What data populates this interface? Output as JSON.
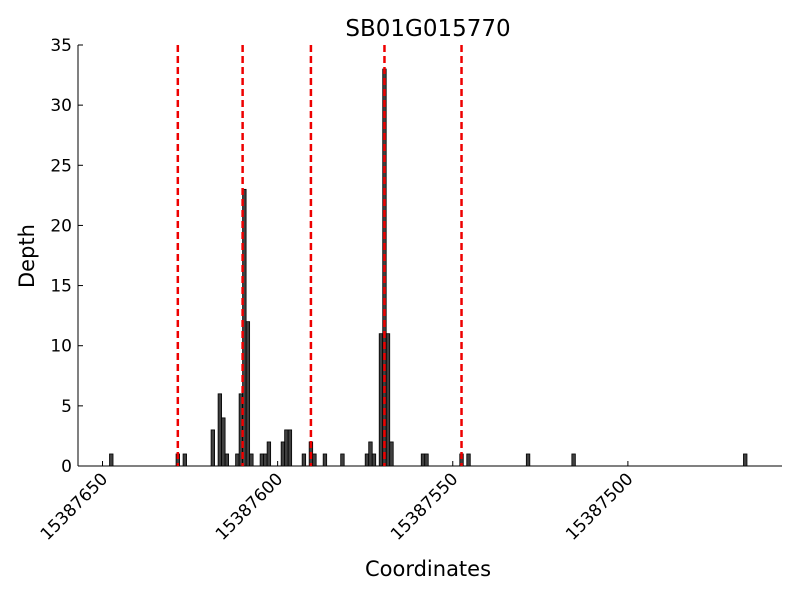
{
  "chart_data": {
    "type": "bar",
    "title": "SB01G015770",
    "x_label": "Coordinates",
    "y_label": "Depth",
    "x": [
      15387648,
      15387629,
      15387627,
      15387619,
      15387617,
      15387616,
      15387615,
      15387612,
      15387611,
      15387610,
      15387609,
      15387608,
      15387605,
      15387604,
      15387603,
      15387599,
      15387598,
      15387597,
      15387593,
      15387591,
      15387590,
      15387587,
      15387582,
      15387575,
      15387574,
      15387573,
      15387571,
      15387570,
      15387569,
      15387568,
      15387559,
      15387558,
      15387548,
      15387546,
      15387529,
      15387516,
      15387467
    ],
    "values": [
      1,
      1,
      1,
      3,
      6,
      4,
      1,
      1,
      6,
      23,
      12,
      1,
      1,
      1,
      2,
      2,
      3,
      3,
      1,
      2,
      1,
      1,
      1,
      1,
      2,
      1,
      11,
      33,
      11,
      2,
      1,
      1,
      1,
      1,
      1,
      1,
      1
    ],
    "color": "#404040",
    "vlines": [
      15387628.5,
      15387610,
      15387590.5,
      15387569.5,
      15387547.5
    ],
    "vline_color": "#ee0000",
    "xlim": [
      15387657,
      15387456
    ],
    "xticks": [
      15387650,
      15387600,
      15387550,
      15387500
    ],
    "ylim": [
      0,
      35
    ],
    "yticks": [
      0,
      5,
      10,
      15,
      20,
      25,
      30,
      35
    ]
  }
}
